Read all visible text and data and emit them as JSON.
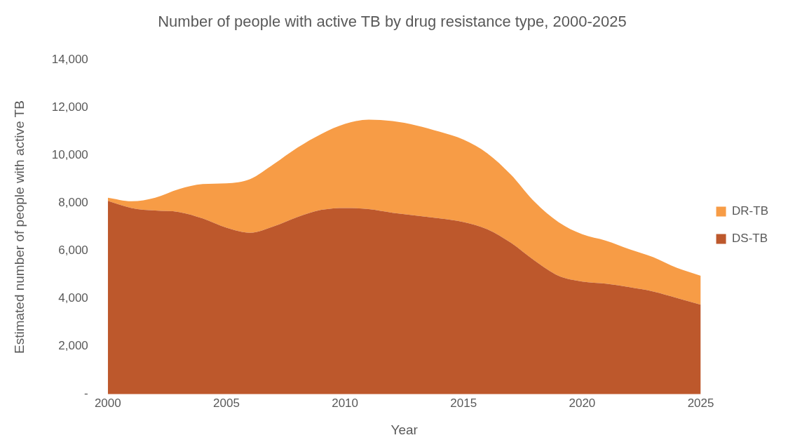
{
  "chart_data": {
    "type": "area",
    "title": "Number of people with active TB by drug resistance type, 2000-2025",
    "xlabel": "Year",
    "ylabel": "Estimated number of people with active TB",
    "stacked": true,
    "x": [
      2000,
      2001,
      2002,
      2003,
      2004,
      2005,
      2006,
      2007,
      2008,
      2009,
      2010,
      2011,
      2012,
      2013,
      2014,
      2015,
      2016,
      2017,
      2018,
      2019,
      2020,
      2021,
      2022,
      2023,
      2024,
      2025
    ],
    "series": [
      {
        "name": "DS-TB",
        "color": "#bd582c",
        "values": [
          8100,
          7800,
          7690,
          7630,
          7360,
          6970,
          6760,
          7030,
          7420,
          7720,
          7800,
          7750,
          7600,
          7480,
          7360,
          7210,
          6910,
          6340,
          5590,
          4960,
          4720,
          4630,
          4480,
          4300,
          4030,
          3750
        ]
      },
      {
        "name": "DR-TB",
        "color": "#f79c46",
        "values": [
          130,
          280,
          540,
          960,
          1440,
          1860,
          2250,
          2610,
          2910,
          3180,
          3520,
          3750,
          3840,
          3780,
          3630,
          3450,
          3180,
          2850,
          2460,
          2250,
          1980,
          1800,
          1590,
          1440,
          1260,
          1210
        ]
      }
    ],
    "xlim": [
      2000,
      2025
    ],
    "xticks": [
      2000,
      2005,
      2010,
      2015,
      2020,
      2025
    ],
    "ylim": [
      0,
      14000
    ],
    "yticks": [
      {
        "value": 0,
        "label": "-"
      },
      {
        "value": 2000,
        "label": "2,000"
      },
      {
        "value": 4000,
        "label": "4,000"
      },
      {
        "value": 6000,
        "label": "6,000"
      },
      {
        "value": 8000,
        "label": "8,000"
      },
      {
        "value": 10000,
        "label": "10,000"
      },
      {
        "value": 12000,
        "label": "12,000"
      },
      {
        "value": 14000,
        "label": "14,000"
      }
    ],
    "grid": false,
    "legend": "right"
  }
}
